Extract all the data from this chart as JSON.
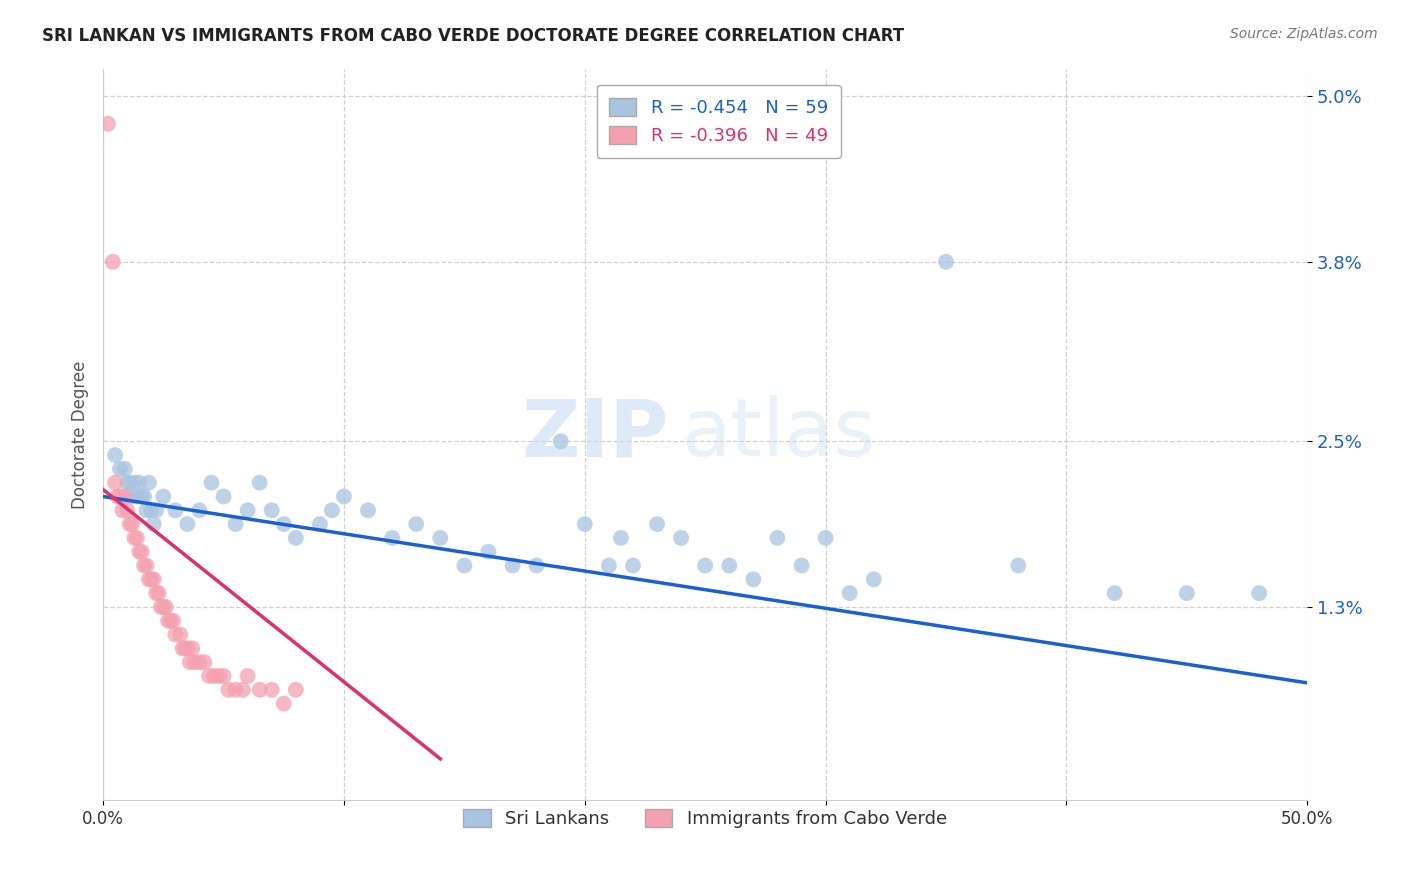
{
  "title": "SRI LANKAN VS IMMIGRANTS FROM CABO VERDE DOCTORATE DEGREE CORRELATION CHART",
  "source": "Source: ZipAtlas.com",
  "ylabel": "Doctorate Degree",
  "xlim": [
    0.0,
    0.5
  ],
  "ylim": [
    -0.001,
    0.052
  ],
  "yticks": [
    0.013,
    0.025,
    0.038,
    0.05
  ],
  "ytick_labels": [
    "1.3%",
    "2.5%",
    "3.8%",
    "5.0%"
  ],
  "xticks": [
    0.0,
    0.1,
    0.2,
    0.3,
    0.4,
    0.5
  ],
  "xtick_labels": [
    "0.0%",
    "",
    "",
    "",
    "",
    "50.0%"
  ],
  "watermark_zip": "ZIP",
  "watermark_atlas": "atlas",
  "legend_blue_label": "Sri Lankans",
  "legend_pink_label": "Immigrants from Cabo Verde",
  "blue_R": -0.454,
  "blue_N": 59,
  "pink_R": -0.396,
  "pink_N": 49,
  "blue_color": "#a8c4e0",
  "pink_color": "#f4a0b0",
  "blue_line_color": "#1a5fd4",
  "pink_line_color": "#e0306a",
  "blue_scatter": [
    [
      0.005,
      0.024
    ],
    [
      0.007,
      0.023
    ],
    [
      0.009,
      0.023
    ],
    [
      0.01,
      0.022
    ],
    [
      0.011,
      0.022
    ],
    [
      0.012,
      0.021
    ],
    [
      0.013,
      0.022
    ],
    [
      0.014,
      0.021
    ],
    [
      0.015,
      0.022
    ],
    [
      0.016,
      0.021
    ],
    [
      0.017,
      0.021
    ],
    [
      0.018,
      0.02
    ],
    [
      0.019,
      0.022
    ],
    [
      0.02,
      0.02
    ],
    [
      0.021,
      0.019
    ],
    [
      0.022,
      0.02
    ],
    [
      0.025,
      0.021
    ],
    [
      0.03,
      0.02
    ],
    [
      0.035,
      0.019
    ],
    [
      0.04,
      0.02
    ],
    [
      0.045,
      0.022
    ],
    [
      0.05,
      0.021
    ],
    [
      0.055,
      0.019
    ],
    [
      0.06,
      0.02
    ],
    [
      0.065,
      0.022
    ],
    [
      0.07,
      0.02
    ],
    [
      0.075,
      0.019
    ],
    [
      0.08,
      0.018
    ],
    [
      0.09,
      0.019
    ],
    [
      0.095,
      0.02
    ],
    [
      0.1,
      0.021
    ],
    [
      0.11,
      0.02
    ],
    [
      0.12,
      0.018
    ],
    [
      0.13,
      0.019
    ],
    [
      0.14,
      0.018
    ],
    [
      0.15,
      0.016
    ],
    [
      0.16,
      0.017
    ],
    [
      0.17,
      0.016
    ],
    [
      0.18,
      0.016
    ],
    [
      0.19,
      0.025
    ],
    [
      0.2,
      0.019
    ],
    [
      0.21,
      0.016
    ],
    [
      0.215,
      0.018
    ],
    [
      0.22,
      0.016
    ],
    [
      0.23,
      0.019
    ],
    [
      0.24,
      0.018
    ],
    [
      0.25,
      0.016
    ],
    [
      0.26,
      0.016
    ],
    [
      0.27,
      0.015
    ],
    [
      0.28,
      0.018
    ],
    [
      0.29,
      0.016
    ],
    [
      0.3,
      0.018
    ],
    [
      0.31,
      0.014
    ],
    [
      0.32,
      0.015
    ],
    [
      0.35,
      0.038
    ],
    [
      0.38,
      0.016
    ],
    [
      0.42,
      0.014
    ],
    [
      0.45,
      0.014
    ],
    [
      0.48,
      0.014
    ]
  ],
  "pink_scatter": [
    [
      0.002,
      0.048
    ],
    [
      0.004,
      0.038
    ],
    [
      0.005,
      0.022
    ],
    [
      0.006,
      0.021
    ],
    [
      0.007,
      0.021
    ],
    [
      0.008,
      0.02
    ],
    [
      0.009,
      0.021
    ],
    [
      0.01,
      0.02
    ],
    [
      0.011,
      0.019
    ],
    [
      0.012,
      0.019
    ],
    [
      0.013,
      0.018
    ],
    [
      0.014,
      0.018
    ],
    [
      0.015,
      0.017
    ],
    [
      0.016,
      0.017
    ],
    [
      0.017,
      0.016
    ],
    [
      0.018,
      0.016
    ],
    [
      0.019,
      0.015
    ],
    [
      0.02,
      0.015
    ],
    [
      0.021,
      0.015
    ],
    [
      0.022,
      0.014
    ],
    [
      0.023,
      0.014
    ],
    [
      0.024,
      0.013
    ],
    [
      0.025,
      0.013
    ],
    [
      0.026,
      0.013
    ],
    [
      0.027,
      0.012
    ],
    [
      0.028,
      0.012
    ],
    [
      0.029,
      0.012
    ],
    [
      0.03,
      0.011
    ],
    [
      0.032,
      0.011
    ],
    [
      0.033,
      0.01
    ],
    [
      0.034,
      0.01
    ],
    [
      0.035,
      0.01
    ],
    [
      0.036,
      0.009
    ],
    [
      0.037,
      0.01
    ],
    [
      0.038,
      0.009
    ],
    [
      0.04,
      0.009
    ],
    [
      0.042,
      0.009
    ],
    [
      0.044,
      0.008
    ],
    [
      0.046,
      0.008
    ],
    [
      0.048,
      0.008
    ],
    [
      0.05,
      0.008
    ],
    [
      0.052,
      0.007
    ],
    [
      0.055,
      0.007
    ],
    [
      0.058,
      0.007
    ],
    [
      0.06,
      0.008
    ],
    [
      0.065,
      0.007
    ],
    [
      0.07,
      0.007
    ],
    [
      0.075,
      0.006
    ],
    [
      0.08,
      0.007
    ]
  ],
  "blue_line_x": [
    0.0,
    0.5
  ],
  "blue_line_y": [
    0.021,
    0.0075
  ],
  "pink_line_x": [
    0.0,
    0.14
  ],
  "pink_line_y": [
    0.0215,
    0.002
  ]
}
